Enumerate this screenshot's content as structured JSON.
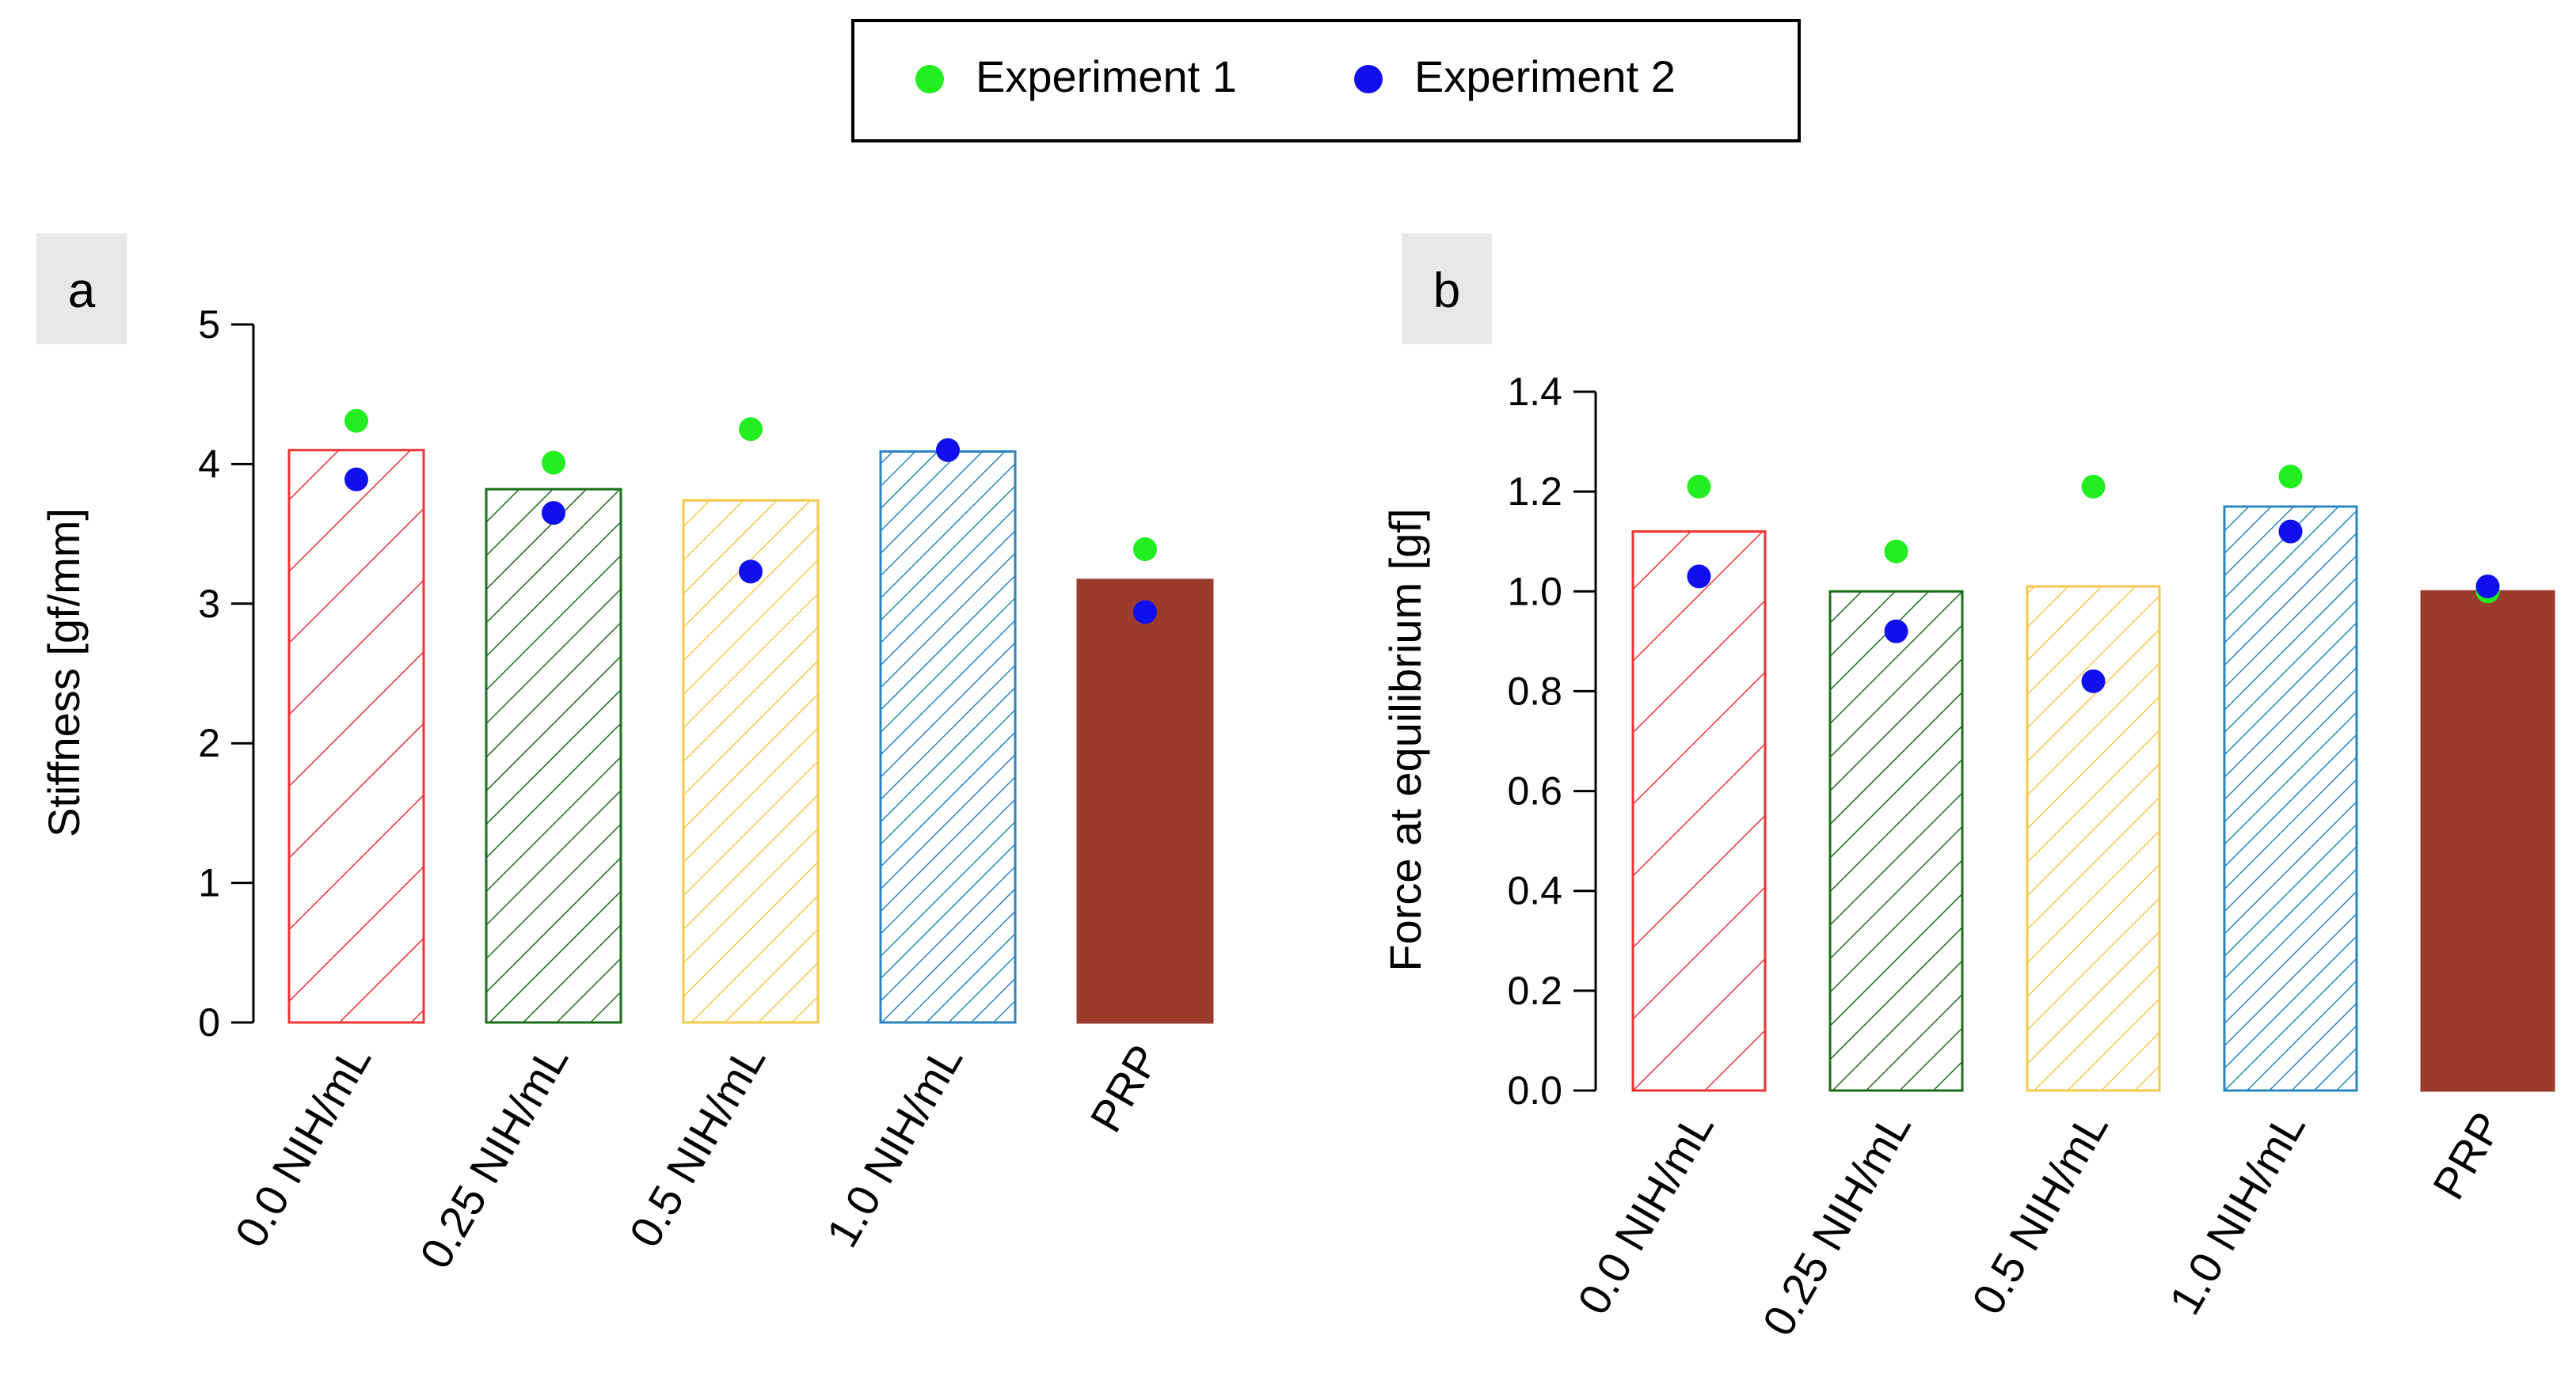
{
  "legend": {
    "entries": [
      {
        "label": "Experiment 1",
        "color": "#22ee22"
      },
      {
        "label": "Experiment 2",
        "color": "#1010ee"
      }
    ]
  },
  "chart_data": [
    {
      "type": "bar",
      "panel_label": "a",
      "categories": [
        "0.0 NIH/mL",
        "0.25 NIH/mL",
        "0.5 NIH/mL",
        "1.0 NIH/mL",
        "PRP"
      ],
      "values": [
        4.1,
        3.82,
        3.74,
        4.09,
        3.17
      ],
      "bar_colors": [
        "#ee3333",
        "#1a6e1a",
        "#f6c94a",
        "#2a86c0",
        "#9b3b2b"
      ],
      "bar_fills": [
        "hatch-wide",
        "hatch",
        "hatch",
        "hatch-dense",
        "solid"
      ],
      "series": [
        {
          "name": "Experiment 1",
          "values": [
            4.31,
            4.01,
            4.25,
            4.1,
            3.39
          ]
        },
        {
          "name": "Experiment 2",
          "values": [
            3.89,
            3.65,
            3.23,
            4.1,
            2.94
          ]
        }
      ],
      "xlabel": "",
      "ylabel": "Stiffness [gf/mm]",
      "ylim": [
        0,
        5
      ],
      "yticks": [
        0,
        1,
        2,
        3,
        4,
        5
      ],
      "ytick_labels": [
        "0",
        "1",
        "2",
        "3",
        "4",
        "5"
      ]
    },
    {
      "type": "bar",
      "panel_label": "b",
      "categories": [
        "0.0 NIH/mL",
        "0.25 NIH/mL",
        "0.5 NIH/mL",
        "1.0 NIH/mL",
        "PRP"
      ],
      "values": [
        1.12,
        1.0,
        1.01,
        1.17,
        1.0
      ],
      "bar_colors": [
        "#ee3333",
        "#1a6e1a",
        "#f6c94a",
        "#2a86c0",
        "#9b3b2b"
      ],
      "bar_fills": [
        "hatch-wide",
        "hatch",
        "hatch",
        "hatch-dense",
        "solid"
      ],
      "series": [
        {
          "name": "Experiment 1",
          "values": [
            1.21,
            1.08,
            1.21,
            1.23,
            1.0
          ]
        },
        {
          "name": "Experiment 2",
          "values": [
            1.03,
            0.92,
            0.82,
            1.12,
            1.01
          ]
        }
      ],
      "xlabel": "",
      "ylabel": "Force at equilibrium [gf]",
      "ylim": [
        0,
        1.4
      ],
      "yticks": [
        0,
        0.2,
        0.4,
        0.6,
        0.8,
        1.0,
        1.2,
        1.4
      ],
      "ytick_labels": [
        "0.0",
        "0.2",
        "0.4",
        "0.6",
        "0.8",
        "1.0",
        "1.2",
        "1.4"
      ]
    }
  ]
}
